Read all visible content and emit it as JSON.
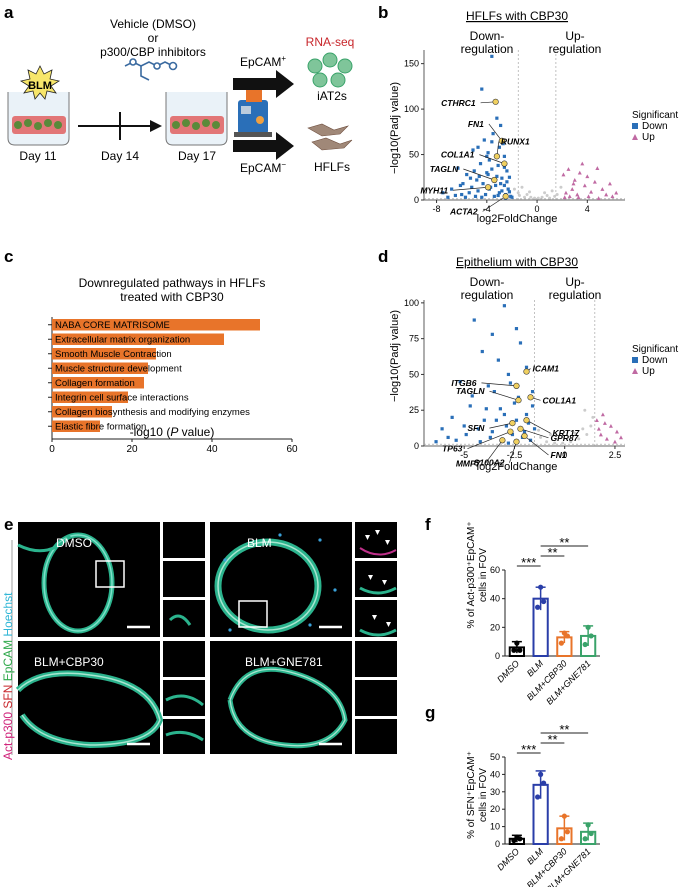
{
  "panels": {
    "a": {
      "label": "a",
      "treatment_line1": "Vehicle (DMSO)",
      "treatment_line2": "or",
      "treatment_line3": "p300/CBP inhibitors",
      "blm": "BLM",
      "days": [
        "Day 11",
        "Day 14",
        "Day 17"
      ],
      "epcam_pos": "EpCAM",
      "epcam_neg": "EpCAM",
      "rnaseq": "RNA-seq",
      "iat2s": "iAT2s",
      "hflfs": "HFLFs",
      "colors": {
        "orange": "#e8742a",
        "blue": "#2a6fb8",
        "green": "#3aa36a",
        "red": "#c8262b"
      }
    },
    "b": {
      "label": "b",
      "title": "HFLFs with CBP30",
      "down": [
        "Down-",
        "regulation"
      ],
      "up": [
        "Up-",
        "regulation"
      ],
      "genes": [
        "CTHRC1",
        "RUNX1",
        "FN1",
        "COL1A1",
        "TAGLN",
        "MYH11",
        "ACTA2"
      ]
    },
    "c": {
      "label": "c"
    },
    "d": {
      "label": "d",
      "title": "Epithelium with CBP30",
      "down": [
        "Down-",
        "regulation"
      ],
      "up": [
        "Up-",
        "regulation"
      ],
      "genes": [
        "ITGB6",
        "ICAM1",
        "COL1A1",
        "TAGLN",
        "KRT17",
        "SFN",
        "GPR87",
        "TP63",
        "FN1",
        "MMP7",
        "S100A2"
      ]
    },
    "e": {
      "label": "e",
      "conditions": [
        "DMSO",
        "BLM",
        "BLM+CBP30",
        "BLM+GNE781"
      ],
      "stain_labels": [
        "Act-p300",
        "SFN",
        "EpCAM",
        "Hoechst"
      ],
      "stain_colors": [
        "#d0237b",
        "#c8262b",
        "#2ea84a",
        "#2fb6d6"
      ]
    },
    "f": {
      "label": "f"
    },
    "g": {
      "label": "g"
    }
  },
  "chart_data": [
    {
      "id": "b",
      "type": "scatter",
      "title": "HFLFs with CBP30",
      "xlabel": "log2FoldChange",
      "ylabel": "−log10(Padj value)",
      "xlim": [
        -9,
        7
      ],
      "ylim": [
        0,
        165
      ],
      "xticks": [
        -8,
        -4,
        0,
        4
      ],
      "yticks": [
        0,
        50,
        100,
        150
      ],
      "legend": {
        "title": "Significant",
        "entries": [
          "Down",
          "Up"
        ],
        "placement": "right"
      },
      "series": [
        {
          "name": "Down",
          "color": "#2a6fb8",
          "marker": "square",
          "points": [
            [
              -3.6,
              158
            ],
            [
              -4.4,
              122
            ],
            [
              -3.3,
              108
            ],
            [
              -2.9,
              82
            ],
            [
              -3.5,
              73
            ],
            [
              -4.2,
              66
            ],
            [
              -5.1,
              55
            ],
            [
              -3.9,
              52
            ],
            [
              -2.6,
              48
            ],
            [
              -6.3,
              35
            ],
            [
              -5.6,
              28
            ],
            [
              -4.8,
              22
            ],
            [
              -3.1,
              38
            ],
            [
              -2.4,
              32
            ],
            [
              -4.5,
              40
            ],
            [
              -3.8,
              44
            ],
            [
              -2.2,
              25
            ],
            [
              -5.9,
              18
            ],
            [
              -6.8,
              12
            ],
            [
              -7.5,
              8
            ],
            [
              -3.2,
              90
            ],
            [
              -2.7,
              62
            ],
            [
              -4.0,
              30
            ],
            [
              -5.2,
              14
            ],
            [
              -2.9,
              18
            ],
            [
              -3.5,
              22
            ],
            [
              -4.7,
              10
            ],
            [
              -6.0,
              6
            ],
            [
              -2.3,
              12
            ],
            [
              -3.0,
              8
            ],
            [
              -3.7,
              14
            ],
            [
              -4.3,
              18
            ],
            [
              -2.5,
              6
            ],
            [
              -5.4,
              8
            ],
            [
              -2.1,
              4
            ],
            [
              -3.4,
              4
            ],
            [
              -4.1,
              6
            ],
            [
              -2.8,
              10
            ],
            [
              -3.9,
              28
            ],
            [
              -2.6,
              16
            ],
            [
              -3.2,
              26
            ],
            [
              -4.6,
              26
            ],
            [
              -5.0,
              32
            ],
            [
              -2.2,
              9
            ],
            [
              -4.9,
              4
            ],
            [
              -7.1,
              3
            ],
            [
              -6.5,
              5
            ],
            [
              -5.7,
              3
            ],
            [
              -3.6,
              34
            ],
            [
              -2.4,
              20
            ],
            [
              -3.8,
              12
            ],
            [
              -3.3,
              16
            ],
            [
              -2.8,
              24
            ],
            [
              -2.0,
              3
            ],
            [
              -2.5,
              2
            ],
            [
              -3.1,
              5
            ],
            [
              -4.4,
              3
            ],
            [
              -5.3,
              24
            ],
            [
              -6.1,
              16
            ],
            [
              -4.0,
              48
            ],
            [
              -3.0,
              58
            ],
            [
              -2.6,
              36
            ],
            [
              -3.6,
              64
            ],
            [
              -4.7,
              58
            ]
          ]
        },
        {
          "name": "Up",
          "color": "#c06aa3",
          "marker": "triangle",
          "points": [
            [
              2.1,
              28
            ],
            [
              2.5,
              34
            ],
            [
              3.0,
              22
            ],
            [
              3.4,
              30
            ],
            [
              4.0,
              26
            ],
            [
              4.6,
              20
            ],
            [
              5.2,
              12
            ],
            [
              5.8,
              18
            ],
            [
              6.3,
              8
            ],
            [
              2.8,
              12
            ],
            [
              3.2,
              6
            ],
            [
              3.8,
              16
            ],
            [
              4.3,
              9
            ],
            [
              2.3,
              8
            ],
            [
              2.6,
              4
            ],
            [
              3.6,
              40
            ],
            [
              4.8,
              35
            ],
            [
              2.9,
              18
            ],
            [
              5.5,
              6
            ],
            [
              2.2,
              3
            ],
            [
              3.3,
              3
            ],
            [
              4.1,
              4
            ],
            [
              4.9,
              2
            ],
            [
              6.0,
              4
            ]
          ]
        },
        {
          "name": "NS",
          "color": "#cccccc",
          "points": [
            [
              -1.5,
              8
            ],
            [
              -1.2,
              14
            ],
            [
              -0.8,
              6
            ],
            [
              -0.5,
              3
            ],
            [
              -0.2,
              2
            ],
            [
              0.1,
              2
            ],
            [
              0.4,
              3
            ],
            [
              0.8,
              5
            ],
            [
              1.2,
              10
            ],
            [
              1.6,
              6
            ],
            [
              -1.8,
              12
            ],
            [
              1.9,
              14
            ],
            [
              -1,
              3
            ],
            [
              1,
              2
            ],
            [
              0.6,
              8
            ],
            [
              -0.6,
              9
            ],
            [
              1.4,
              4
            ],
            [
              -1.4,
              5
            ]
          ]
        }
      ],
      "highlighted": [
        {
          "gene": "CTHRC1",
          "x": -3.3,
          "y": 108
        },
        {
          "gene": "FN1",
          "x": -2.8,
          "y": 65
        },
        {
          "gene": "RUNX1",
          "x": -3.2,
          "y": 48
        },
        {
          "gene": "COL1A1",
          "x": -2.6,
          "y": 40
        },
        {
          "gene": "TAGLN",
          "x": -3.4,
          "y": 22
        },
        {
          "gene": "MYH11",
          "x": -3.9,
          "y": 14
        },
        {
          "gene": "ACTA2",
          "x": -2.5,
          "y": 4
        }
      ]
    },
    {
      "id": "c",
      "type": "bar",
      "orientation": "horizontal",
      "title": "Downregulated pathways in HFLFs treated with CBP30",
      "xlabel": "-log10 (P value)",
      "xlim": [
        0,
        60
      ],
      "xticks": [
        0,
        20,
        40,
        60
      ],
      "color": "#e8742a",
      "categories": [
        "NABA CORE MATRISOME",
        "Extracellular matrix organization",
        "Smooth Muscle Contraction",
        "Muscle structure development",
        "Collagen formation",
        "Integrin cell surface interactions",
        "Collagen biosynthesis and modifying enzymes",
        "Elastic fibre formation"
      ],
      "values": [
        52,
        43,
        26,
        24,
        23,
        19,
        15,
        12
      ]
    },
    {
      "id": "d",
      "type": "scatter",
      "title": "Epithelium with CBP30",
      "xlabel": "log2FoldChange",
      "ylabel": "−log10(Padj value)",
      "xlim": [
        -7,
        3
      ],
      "ylim": [
        0,
        102
      ],
      "xticks": [
        -5,
        -2.5,
        0,
        2.5
      ],
      "yticks": [
        0,
        25,
        50,
        75,
        100
      ],
      "legend": {
        "title": "Significant",
        "entries": [
          "Down",
          "Up"
        ],
        "placement": "right"
      },
      "series": [
        {
          "name": "Down",
          "color": "#2a6fb8",
          "marker": "square",
          "points": [
            [
              -3.0,
              98
            ],
            [
              -4.5,
              88
            ],
            [
              -2.4,
              82
            ],
            [
              -3.6,
              78
            ],
            [
              -2.2,
              72
            ],
            [
              -4.1,
              66
            ],
            [
              -3.3,
              60
            ],
            [
              -1.9,
              55
            ],
            [
              -5.2,
              45
            ],
            [
              -2.8,
              50
            ],
            [
              -3.8,
              42
            ],
            [
              -1.6,
              38
            ],
            [
              -4.6,
              35
            ],
            [
              -2.5,
              30
            ],
            [
              -3.2,
              26
            ],
            [
              -5.6,
              20
            ],
            [
              -6.1,
              12
            ],
            [
              -1.9,
              22
            ],
            [
              -4.0,
              18
            ],
            [
              -2.9,
              14
            ],
            [
              -3.6,
              10
            ],
            [
              -4.9,
              8
            ],
            [
              -2.1,
              6
            ],
            [
              -1.5,
              12
            ],
            [
              -5.4,
              4
            ],
            [
              -3.1,
              4
            ],
            [
              -2.6,
              8
            ],
            [
              -4.3,
              12
            ],
            [
              -1.8,
              16
            ],
            [
              -3.9,
              26
            ],
            [
              -2.3,
              34
            ],
            [
              -3.5,
              38
            ],
            [
              -2.7,
              44
            ],
            [
              -4.7,
              28
            ],
            [
              -5.8,
              6
            ],
            [
              -1.7,
              4
            ],
            [
              -2.0,
              10
            ],
            [
              -3.4,
              18
            ],
            [
              -4.2,
              3
            ],
            [
              -2.4,
              18
            ],
            [
              -3.0,
              22
            ],
            [
              -1.6,
              28
            ],
            [
              -5.0,
              14
            ],
            [
              -6.4,
              3
            ],
            [
              -2.8,
              2
            ],
            [
              -3.7,
              6
            ]
          ]
        },
        {
          "name": "Up",
          "color": "#c06aa3",
          "marker": "triangle",
          "points": [
            [
              1.6,
              18
            ],
            [
              1.9,
              22
            ],
            [
              2.3,
              14
            ],
            [
              2.6,
              10
            ],
            [
              1.8,
              8
            ],
            [
              2.1,
              5
            ],
            [
              2.5,
              3
            ],
            [
              1.7,
              12
            ],
            [
              2.8,
              6
            ],
            [
              2.0,
              16
            ]
          ]
        },
        {
          "name": "NS",
          "color": "#cccccc",
          "points": [
            [
              -1.2,
              6
            ],
            [
              -0.9,
              3
            ],
            [
              -0.5,
              2
            ],
            [
              -0.1,
              2
            ],
            [
              0.3,
              3
            ],
            [
              0.7,
              5
            ],
            [
              1.1,
              8
            ],
            [
              -1.3,
              11
            ],
            [
              1.3,
              14
            ],
            [
              0.9,
              12
            ],
            [
              -0.7,
              8
            ],
            [
              0.5,
              9
            ],
            [
              1.4,
              20
            ],
            [
              1.0,
              25
            ]
          ]
        }
      ],
      "highlighted": [
        {
          "gene": "ITGB6",
          "x": -2.4,
          "y": 42
        },
        {
          "gene": "ICAM1",
          "x": -1.9,
          "y": 52
        },
        {
          "gene": "COL1A1",
          "x": -1.7,
          "y": 34
        },
        {
          "gene": "TAGLN",
          "x": -2.3,
          "y": 32
        },
        {
          "gene": "KRT17",
          "x": -1.9,
          "y": 18
        },
        {
          "gene": "SFN",
          "x": -2.6,
          "y": 16
        },
        {
          "gene": "GPR87",
          "x": -2.2,
          "y": 12
        },
        {
          "gene": "TP63",
          "x": -2.7,
          "y": 10
        },
        {
          "gene": "FN1",
          "x": -2.0,
          "y": 7
        },
        {
          "gene": "MMP7",
          "x": -3.1,
          "y": 4
        },
        {
          "gene": "S100A2",
          "x": -2.4,
          "y": 3
        }
      ]
    },
    {
      "id": "f",
      "type": "bar",
      "ylabel": "% of Act-p300⁺EpCAM⁺ cells in FOV",
      "ylim": [
        0,
        60
      ],
      "yticks": [
        0,
        20,
        40,
        60
      ],
      "categories": [
        "DMSO",
        "BLM",
        "BLM+CBP30",
        "BLM+GNE781"
      ],
      "colors": [
        "#000000",
        "#2a3ea8",
        "#e8742a",
        "#3aa36a"
      ],
      "values": [
        6,
        40,
        13,
        14
      ],
      "errors": [
        4,
        8,
        4,
        7
      ],
      "points": [
        [
          4,
          9,
          4
        ],
        [
          34,
          48,
          38
        ],
        [
          9,
          16,
          14
        ],
        [
          8,
          20,
          14
        ]
      ],
      "significance": [
        {
          "from": 0,
          "to": 1,
          "label": "***"
        },
        {
          "from": 1,
          "to": 2,
          "label": "**"
        },
        {
          "from": 1,
          "to": 3,
          "label": "**"
        }
      ]
    },
    {
      "id": "g",
      "type": "bar",
      "ylabel": "% of SFN⁺EpCAM⁺ cells in FOV",
      "ylim": [
        0,
        50
      ],
      "yticks": [
        0,
        10,
        20,
        30,
        40,
        50
      ],
      "categories": [
        "DMSO",
        "BLM",
        "BLM+CBP30",
        "BLM+GNE781"
      ],
      "colors": [
        "#000000",
        "#2a3ea8",
        "#e8742a",
        "#3aa36a"
      ],
      "values": [
        3,
        34,
        9,
        7
      ],
      "errors": [
        2,
        8,
        7,
        5
      ],
      "points": [
        [
          2,
          4,
          3
        ],
        [
          27,
          40,
          35
        ],
        [
          3,
          16,
          7
        ],
        [
          3,
          11,
          6
        ]
      ],
      "significance": [
        {
          "from": 0,
          "to": 1,
          "label": "***"
        },
        {
          "from": 1,
          "to": 2,
          "label": "**"
        },
        {
          "from": 1,
          "to": 3,
          "label": "**"
        }
      ]
    }
  ]
}
